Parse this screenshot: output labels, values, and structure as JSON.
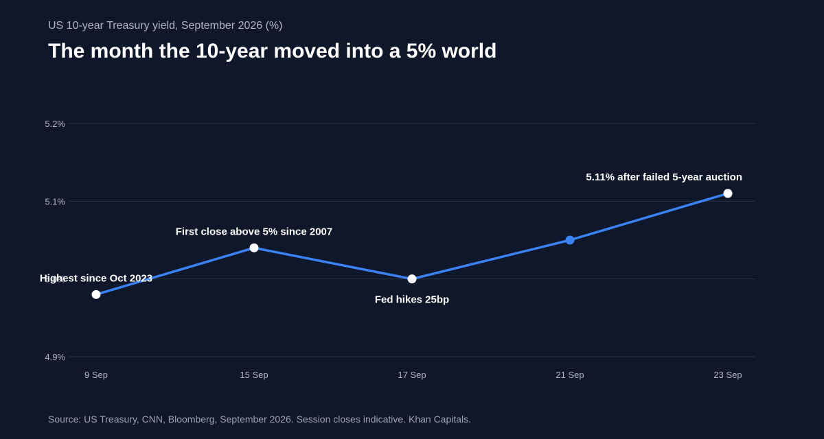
{
  "header": {
    "subtitle": "US 10-year Treasury yield, September 2026 (%)",
    "title": "The month the 10-year moved into a 5% world"
  },
  "footer": {
    "source": "Source: US Treasury, CNN, Bloomberg, September 2026. Session closes indicative. Khan Capitals."
  },
  "colors": {
    "background": "#0e182a",
    "line": "#3b82f6",
    "grid": "#2a3446",
    "marker_highlight": "#ffffff",
    "marker_plain": "#3b82f6"
  },
  "chart_data": {
    "type": "line",
    "title": "The month the 10-year moved into a 5% world",
    "subtitle": "US 10-year Treasury yield, September 2026 (%)",
    "xlabel": "",
    "ylabel": "",
    "categories": [
      "9 Sep",
      "15 Sep",
      "17 Sep",
      "21 Sep",
      "23 Sep"
    ],
    "values": [
      4.98,
      5.04,
      5.0,
      5.05,
      5.11
    ],
    "ylim": [
      4.9,
      5.2
    ],
    "yticks": [
      4.9,
      5.0,
      5.1,
      5.2
    ],
    "ytick_labels": [
      "4.9%",
      "5.0%",
      "5.1%",
      "5.2%"
    ],
    "grid": true,
    "legend": "none",
    "annotations": [
      {
        "index": 0,
        "text": "Highest since Oct 2023",
        "position": "above"
      },
      {
        "index": 1,
        "text": "First close above 5% since 2007",
        "position": "above"
      },
      {
        "index": 2,
        "text": "Fed hikes 25bp",
        "position": "below"
      },
      {
        "index": 4,
        "text": "5.11% after failed 5-year auction",
        "position": "above"
      }
    ],
    "highlighted_points": [
      0,
      1,
      2,
      4
    ]
  }
}
